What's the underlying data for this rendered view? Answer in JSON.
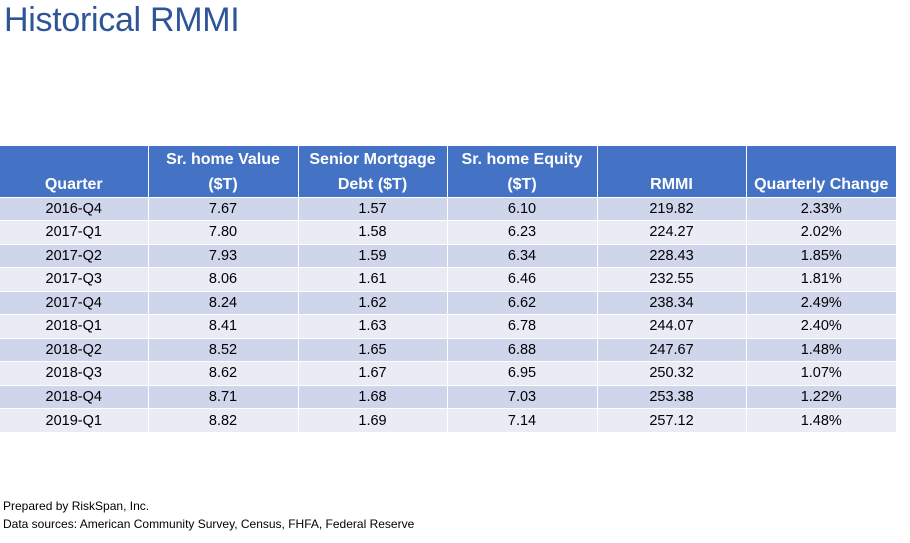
{
  "title": "Historical RMMI",
  "table": {
    "headers": [
      {
        "line1": "",
        "line2": "Quarter"
      },
      {
        "line1": "Sr. home Value",
        "line2": "($T)"
      },
      {
        "line1": "Senior Mortgage",
        "line2": "Debt ($T)"
      },
      {
        "line1": "Sr. home Equity",
        "line2": "($T)"
      },
      {
        "line1": "",
        "line2": "RMMI"
      },
      {
        "line1": "",
        "line2": "Quarterly Change"
      }
    ],
    "rows": [
      [
        "2016-Q4",
        "7.67",
        "1.57",
        "6.10",
        "219.82",
        "2.33%"
      ],
      [
        "2017-Q1",
        "7.80",
        "1.58",
        "6.23",
        "224.27",
        "2.02%"
      ],
      [
        "2017-Q2",
        "7.93",
        "1.59",
        "6.34",
        "228.43",
        "1.85%"
      ],
      [
        "2017-Q3",
        "8.06",
        "1.61",
        "6.46",
        "232.55",
        "1.81%"
      ],
      [
        "2017-Q4",
        "8.24",
        "1.62",
        "6.62",
        "238.34",
        "2.49%"
      ],
      [
        "2018-Q1",
        "8.41",
        "1.63",
        "6.78",
        "244.07",
        "2.40%"
      ],
      [
        "2018-Q2",
        "8.52",
        "1.65",
        "6.88",
        "247.67",
        "1.48%"
      ],
      [
        "2018-Q3",
        "8.62",
        "1.67",
        "6.95",
        "250.32",
        "1.07%"
      ],
      [
        "2018-Q4",
        "8.71",
        "1.68",
        "7.03",
        "253.38",
        "1.22%"
      ],
      [
        "2019-Q1",
        "8.82",
        "1.69",
        "7.14",
        "257.12",
        "1.48%"
      ]
    ]
  },
  "footer": {
    "prepared_by": "Prepared by RiskSpan, Inc.",
    "sources": "Data sources: American Community Survey, Census, FHFA, Federal Reserve"
  },
  "colors": {
    "title": "#2f5597",
    "header_bg": "#4472c4",
    "row_dark": "#cfd5ea",
    "row_light": "#e9ebf5"
  }
}
